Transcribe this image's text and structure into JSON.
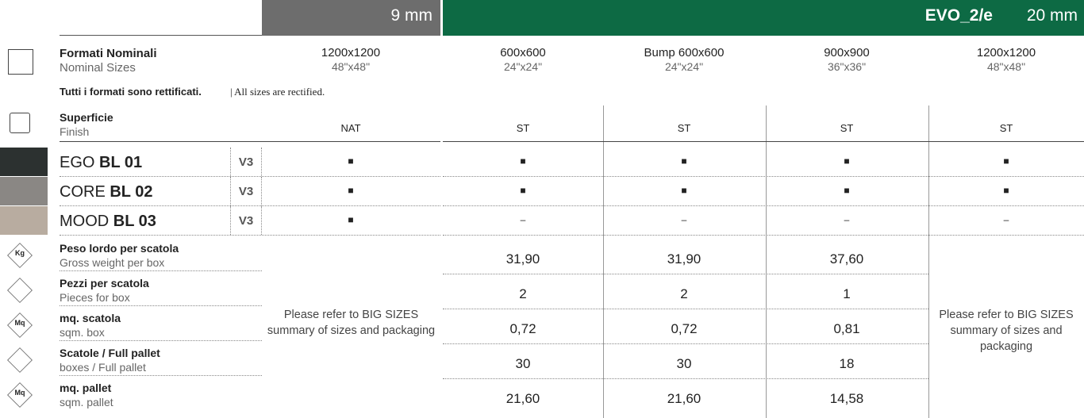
{
  "header": {
    "thin": "9 mm",
    "brand": "EVO_2/e",
    "thick": "20 mm"
  },
  "sizes": {
    "label": "Formati Nominali",
    "label_en": "Nominal Sizes",
    "cells": [
      {
        "size": "1200x1200",
        "inches": "48\"x48\""
      },
      {
        "size": "600x600",
        "inches": "24\"x24\""
      },
      {
        "size": "Bump 600x600",
        "inches": "24\"x24\""
      },
      {
        "size": "900x900",
        "inches": "36\"x36\""
      },
      {
        "size": "1200x1200",
        "inches": "48\"x48\""
      }
    ]
  },
  "note": {
    "it": "Tutti i formati sono rettificati.",
    "en": "| All sizes are rectified."
  },
  "finish": {
    "label": "Superficie",
    "label_en": "Finish",
    "cells": [
      "NAT",
      "ST",
      "ST",
      "ST",
      "ST"
    ]
  },
  "products": [
    {
      "prefix": "EGO",
      "code": "BL 01",
      "grade": "V3",
      "swatch": "#2c3130",
      "cells": [
        "■",
        "■",
        "■",
        "■",
        "■"
      ]
    },
    {
      "prefix": "CORE",
      "code": "BL 02",
      "grade": "V3",
      "swatch": "#8a8784",
      "cells": [
        "■",
        "■",
        "■",
        "■",
        "■"
      ]
    },
    {
      "prefix": "MOOD",
      "code": "BL 03",
      "grade": "V3",
      "swatch": "#b8aca0",
      "cells": [
        "■",
        "–",
        "–",
        "–",
        "–"
      ]
    }
  ],
  "packaging": {
    "refer_note": "Please refer to BIG SIZES summary of sizes and packaging",
    "rows": [
      {
        "icon": "Kg",
        "label": "Peso lordo per scatola",
        "label_en": "Gross weight per box",
        "values": [
          "31,90",
          "31,90",
          "37,60"
        ]
      },
      {
        "label": "Pezzi per scatola",
        "label_en": "Pieces for box",
        "values": [
          "2",
          "2",
          "1"
        ]
      },
      {
        "icon": "Mq",
        "label": "mq. scatola",
        "label_en": "sqm. box",
        "values": [
          "0,72",
          "0,72",
          "0,81"
        ]
      },
      {
        "label": "Scatole / Full pallet",
        "label_en": "boxes / Full pallet",
        "values": [
          "30",
          "30",
          "18"
        ]
      },
      {
        "icon": "Mq",
        "label": "mq. pallet",
        "label_en": "sqm. pallet",
        "values": [
          "21,60",
          "21,60",
          "14,58"
        ]
      }
    ]
  }
}
